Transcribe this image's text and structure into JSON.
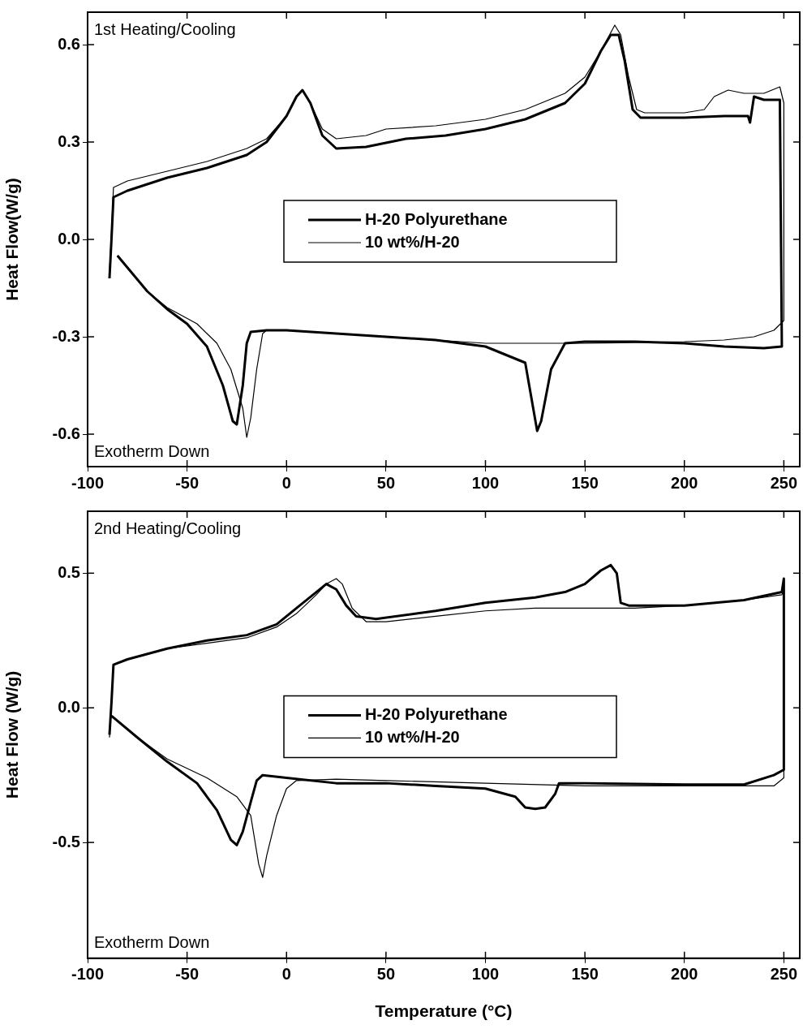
{
  "chart_data": [
    {
      "type": "line",
      "ylabel": "Heat Flow(W/g)",
      "xlim": [
        -100,
        258
      ],
      "ylim": [
        -0.7,
        0.7
      ],
      "xticks": [
        -100,
        -50,
        0,
        50,
        100,
        150,
        200,
        250
      ],
      "yticks": [
        {
          "value": -0.6,
          "label": "-0.6"
        },
        {
          "value": -0.3,
          "label": "-0.3"
        },
        {
          "value": 0,
          "label": "0.0"
        },
        {
          "value": 0.3,
          "label": "0.3"
        },
        {
          "value": 0.6,
          "label": "0.6"
        }
      ],
      "grid": false,
      "legend": "center",
      "annotations": [
        "1st Heating/Cooling",
        "Exotherm Down"
      ],
      "series": [
        {
          "name": "H-20 Polyurethane",
          "color": "#000000",
          "x": [
            -89,
            -88,
            -87,
            -80,
            -60,
            -40,
            -20,
            -10,
            0,
            5,
            8,
            12,
            18,
            25,
            40,
            60,
            80,
            100,
            120,
            140,
            150,
            158,
            163,
            167,
            170,
            174,
            178,
            200,
            220,
            232,
            233,
            235,
            240,
            248,
            249,
            240,
            220,
            200,
            175,
            150,
            140,
            133,
            128,
            126,
            124,
            120,
            110,
            100,
            75,
            50,
            25,
            0,
            -10,
            -18,
            -20,
            -22,
            -25,
            -27,
            -32,
            -40,
            -50,
            -60,
            -70,
            -85
          ],
          "values": [
            -0.12,
            0.0,
            0.13,
            0.15,
            0.19,
            0.22,
            0.26,
            0.3,
            0.38,
            0.44,
            0.46,
            0.42,
            0.32,
            0.28,
            0.285,
            0.31,
            0.32,
            0.34,
            0.37,
            0.42,
            0.48,
            0.58,
            0.63,
            0.63,
            0.55,
            0.4,
            0.375,
            0.375,
            0.38,
            0.38,
            0.36,
            0.44,
            0.43,
            0.43,
            -0.33,
            -0.335,
            -0.33,
            -0.32,
            -0.315,
            -0.315,
            -0.32,
            -0.4,
            -0.56,
            -0.59,
            -0.52,
            -0.38,
            -0.355,
            -0.33,
            -0.31,
            -0.3,
            -0.29,
            -0.28,
            -0.28,
            -0.285,
            -0.32,
            -0.45,
            -0.57,
            -0.56,
            -0.45,
            -0.33,
            -0.26,
            -0.215,
            -0.16,
            -0.05
          ]
        },
        {
          "name": "10 wt%/H-20",
          "color": "#000000",
          "x": [
            -89,
            -88,
            -87,
            -80,
            -60,
            -40,
            -20,
            -10,
            0,
            5,
            8,
            12,
            18,
            25,
            40,
            50,
            75,
            100,
            120,
            140,
            150,
            158,
            165,
            168,
            172,
            176,
            180,
            200,
            210,
            215,
            222,
            230,
            240,
            248,
            250,
            250,
            245,
            235,
            220,
            200,
            150,
            100,
            75,
            50,
            25,
            0,
            -10,
            -12,
            -15,
            -18,
            -20,
            -22,
            -28,
            -35,
            -45,
            -60,
            -70,
            -85
          ],
          "values": [
            -0.1,
            0.02,
            0.16,
            0.18,
            0.21,
            0.24,
            0.28,
            0.31,
            0.38,
            0.44,
            0.46,
            0.42,
            0.34,
            0.31,
            0.32,
            0.34,
            0.35,
            0.37,
            0.4,
            0.45,
            0.5,
            0.58,
            0.66,
            0.63,
            0.5,
            0.4,
            0.39,
            0.39,
            0.4,
            0.44,
            0.46,
            0.45,
            0.45,
            0.47,
            0.42,
            -0.25,
            -0.28,
            -0.3,
            -0.31,
            -0.315,
            -0.32,
            -0.32,
            -0.31,
            -0.3,
            -0.29,
            -0.28,
            -0.28,
            -0.29,
            -0.4,
            -0.55,
            -0.61,
            -0.52,
            -0.4,
            -0.32,
            -0.26,
            -0.21,
            -0.16,
            -0.05
          ]
        }
      ]
    },
    {
      "type": "line",
      "xlabel": "Temperature (°C)",
      "ylabel": "Heat Flow (W/g)",
      "xlim": [
        -100,
        258
      ],
      "ylim": [
        -0.93,
        0.73
      ],
      "xticks": [
        -100,
        -50,
        0,
        50,
        100,
        150,
        200,
        250
      ],
      "yticks": [
        {
          "value": -0.5,
          "label": "-0.5"
        },
        {
          "value": 0,
          "label": "0.0"
        },
        {
          "value": 0.5,
          "label": "0.5"
        }
      ],
      "grid": false,
      "legend": "center",
      "annotations": [
        "2nd Heating/Cooling",
        "Exotherm Down"
      ],
      "series": [
        {
          "name": "H-20 Polyurethane",
          "color": "#000000",
          "x": [
            -89,
            -88,
            -87,
            -80,
            -60,
            -40,
            -20,
            -5,
            5,
            15,
            20,
            25,
            30,
            35,
            45,
            75,
            100,
            125,
            140,
            150,
            158,
            163,
            166,
            168,
            172,
            200,
            230,
            249,
            250,
            250,
            245,
            230,
            200,
            150,
            137,
            135,
            130,
            125,
            120,
            115,
            100,
            75,
            50,
            25,
            0,
            -12,
            -15,
            -18,
            -22,
            -25,
            -28,
            -35,
            -45,
            -60,
            -75,
            -88
          ],
          "values": [
            -0.1,
            0.02,
            0.16,
            0.18,
            0.22,
            0.25,
            0.27,
            0.31,
            0.37,
            0.43,
            0.46,
            0.44,
            0.38,
            0.34,
            0.33,
            0.36,
            0.39,
            0.41,
            0.43,
            0.46,
            0.51,
            0.53,
            0.5,
            0.39,
            0.38,
            0.38,
            0.4,
            0.43,
            0.48,
            -0.23,
            -0.25,
            -0.285,
            -0.285,
            -0.28,
            -0.28,
            -0.32,
            -0.37,
            -0.375,
            -0.37,
            -0.33,
            -0.3,
            -0.29,
            -0.28,
            -0.28,
            -0.26,
            -0.25,
            -0.27,
            -0.35,
            -0.46,
            -0.51,
            -0.49,
            -0.38,
            -0.28,
            -0.2,
            -0.11,
            -0.03
          ]
        },
        {
          "name": "10 wt%/H-20",
          "color": "#000000",
          "x": [
            -89,
            -88,
            -87,
            -80,
            -60,
            -40,
            -20,
            -5,
            5,
            15,
            20,
            25,
            28,
            33,
            40,
            50,
            75,
            100,
            125,
            150,
            175,
            200,
            230,
            249,
            250,
            250,
            245,
            230,
            200,
            150,
            100,
            50,
            25,
            5,
            0,
            -5,
            -10,
            -12,
            -14,
            -18,
            -25,
            -40,
            -60,
            -75,
            -88
          ],
          "values": [
            -0.11,
            0.02,
            0.16,
            0.18,
            0.22,
            0.24,
            0.26,
            0.3,
            0.35,
            0.42,
            0.46,
            0.48,
            0.46,
            0.37,
            0.32,
            0.32,
            0.34,
            0.36,
            0.37,
            0.37,
            0.37,
            0.38,
            0.4,
            0.42,
            0.44,
            -0.26,
            -0.29,
            -0.29,
            -0.29,
            -0.29,
            -0.28,
            -0.27,
            -0.265,
            -0.27,
            -0.3,
            -0.4,
            -0.55,
            -0.63,
            -0.58,
            -0.4,
            -0.33,
            -0.26,
            -0.19,
            -0.11,
            -0.03
          ]
        }
      ]
    }
  ]
}
